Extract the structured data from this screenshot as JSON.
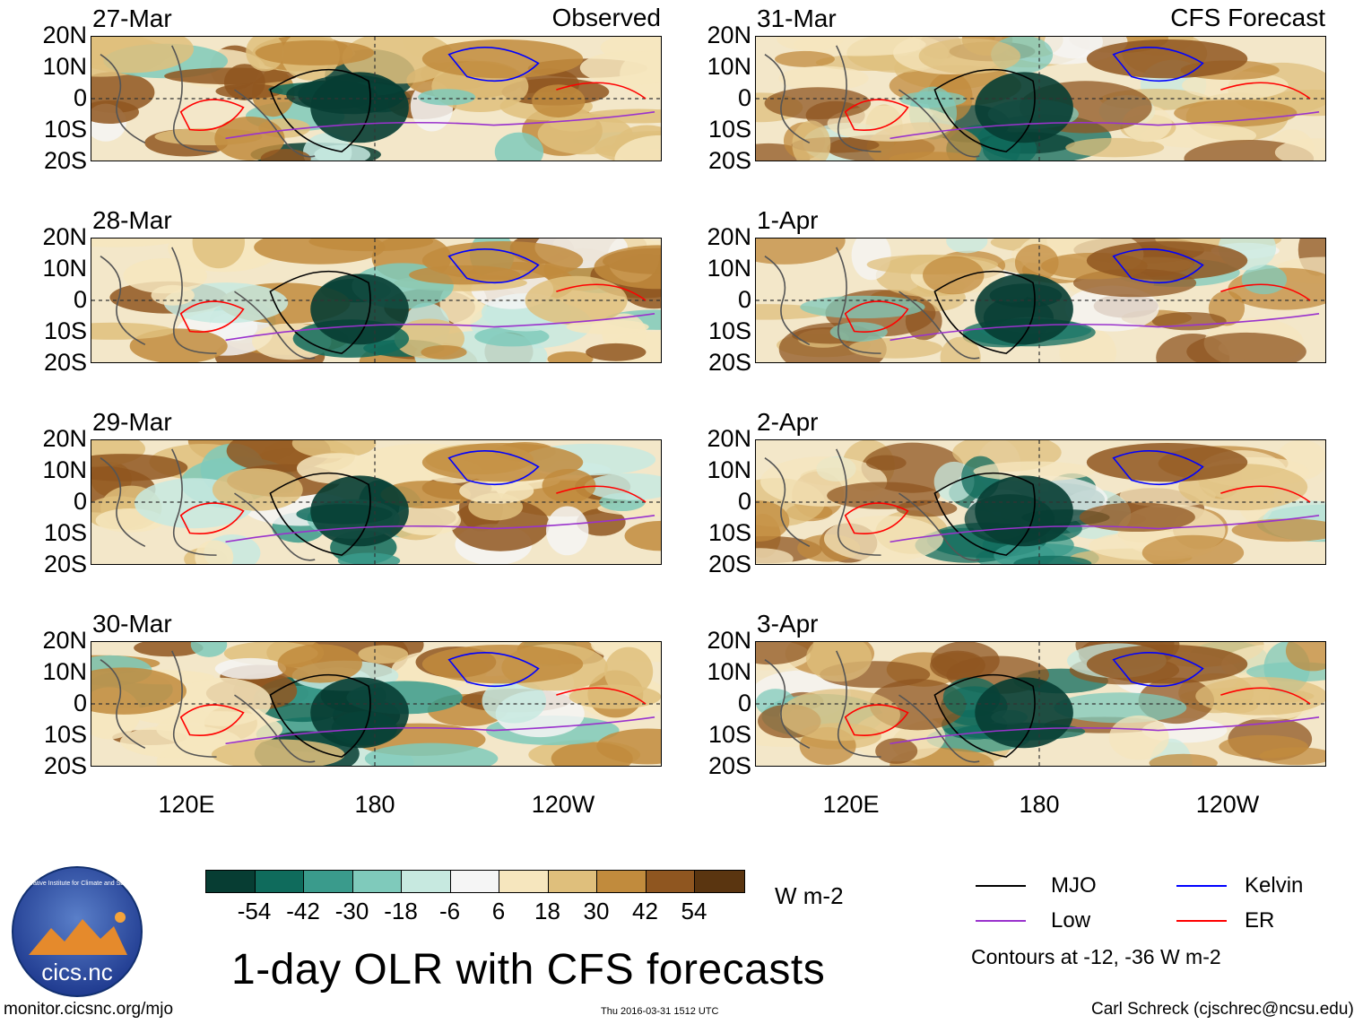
{
  "title": "1-day OLR with CFS forecasts",
  "left_header": "Observed",
  "right_header": "CFS Forecast",
  "left_panels": [
    {
      "date": "27-Mar"
    },
    {
      "date": "28-Mar"
    },
    {
      "date": "29-Mar"
    },
    {
      "date": "30-Mar"
    }
  ],
  "right_panels": [
    {
      "date": "31-Mar"
    },
    {
      "date": "1-Apr"
    },
    {
      "date": "2-Apr"
    },
    {
      "date": "3-Apr"
    }
  ],
  "lat_labels": [
    "20N",
    "10N",
    "0",
    "10S",
    "20S"
  ],
  "lon_labels": [
    "120E",
    "180",
    "120W"
  ],
  "colorbar": {
    "labels": [
      "-54",
      "-42",
      "-30",
      "-18",
      "-6",
      "6",
      "18",
      "30",
      "42",
      "54"
    ],
    "colors": [
      "#073d33",
      "#0f6b5c",
      "#3a9b8c",
      "#7fcabb",
      "#c7e9e0",
      "#f5f5f5",
      "#f6e6be",
      "#dfbf7c",
      "#c18b3d",
      "#8f5620",
      "#5a3510"
    ],
    "units": "W m-2"
  },
  "legend": {
    "mjo": {
      "label": "MJO",
      "color": "#000000"
    },
    "kelvin": {
      "label": "Kelvin",
      "color": "#0000ff"
    },
    "low": {
      "label": "Low",
      "color": "#9a32cd"
    },
    "er": {
      "label": "ER",
      "color": "#ff0000"
    },
    "note": "Contours at -12, -36 W m-2"
  },
  "footer": {
    "left": "monitor.cicsnc.org/mjo",
    "center": "Thu 2016-03-31 1512 UTC",
    "right": "Carl Schreck (cjschrec@ncsu.edu)"
  },
  "logo": {
    "text": "cics.nc",
    "ring_text": "Cooperative Institute for Climate and Satellites"
  }
}
